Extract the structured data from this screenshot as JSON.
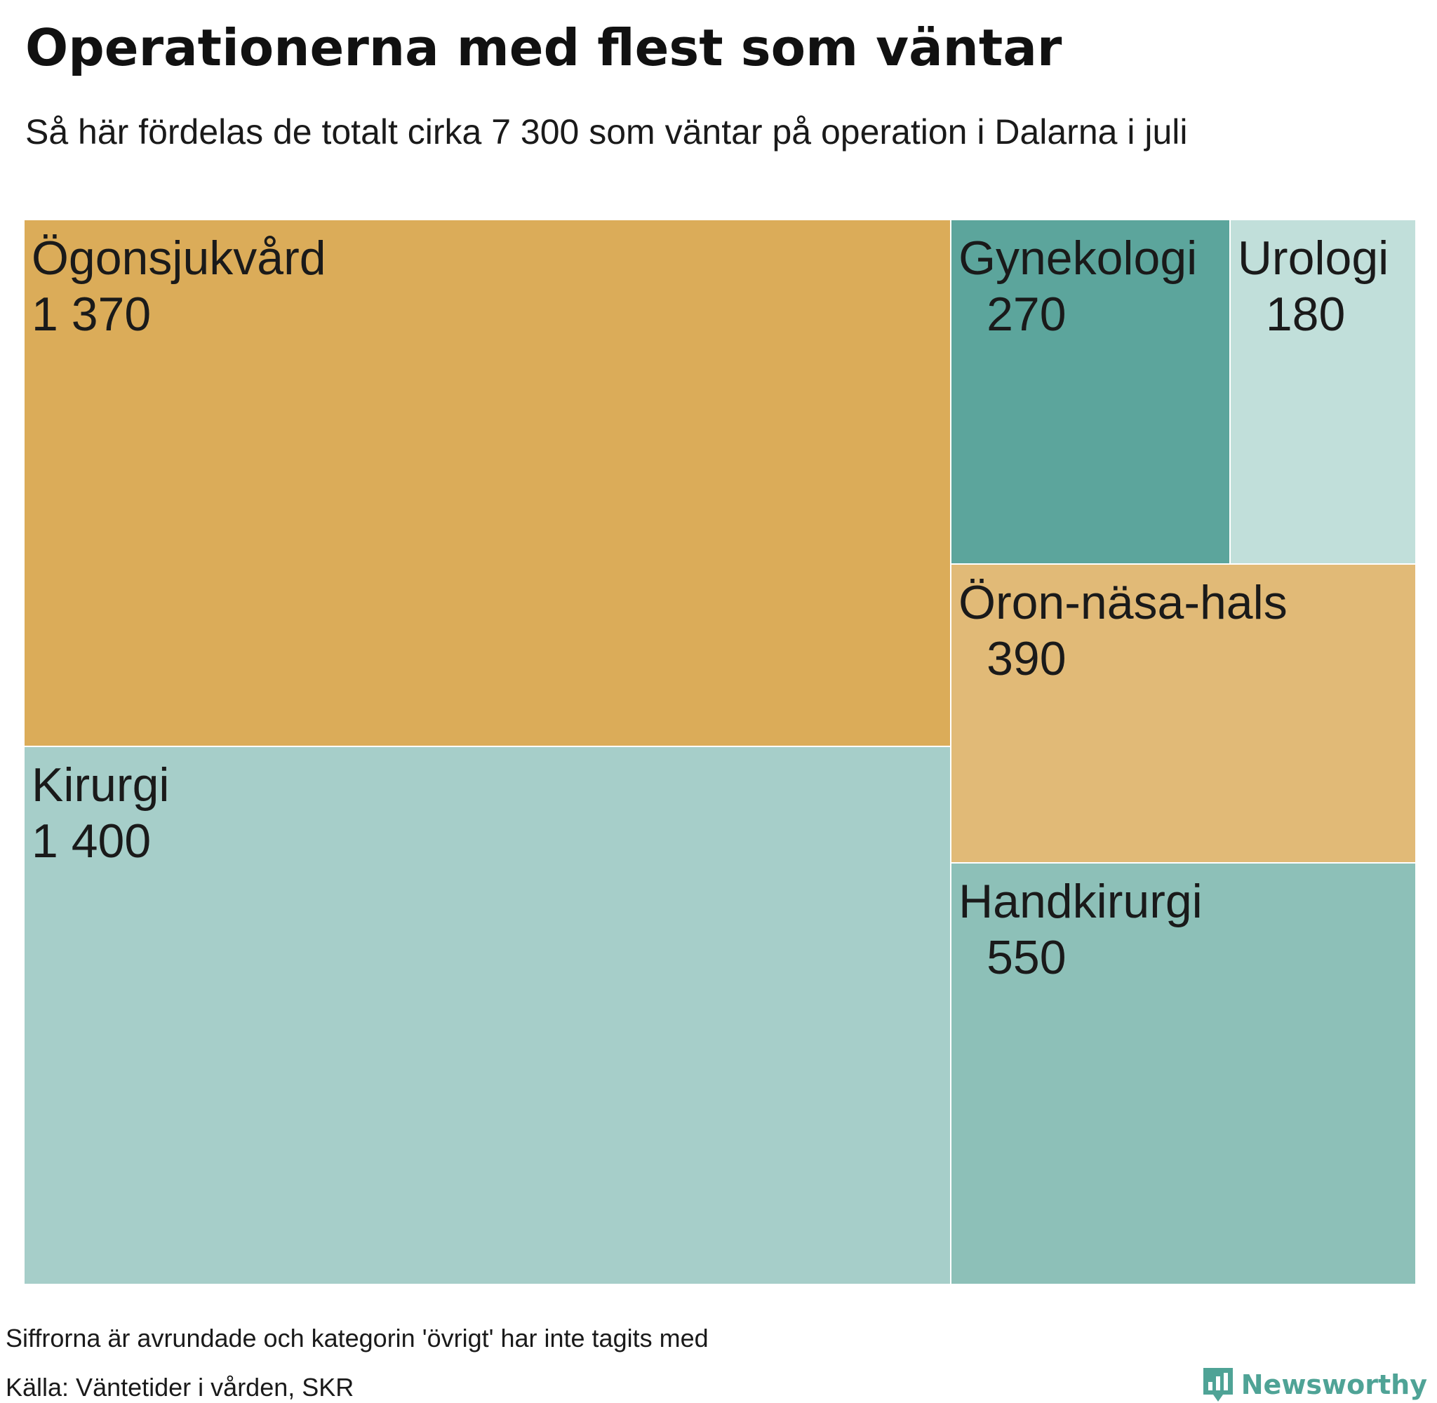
{
  "title": "Operationerna med flest som väntar",
  "subtitle": "Så här fördelas de totalt cirka 7 300 som väntar på operation i Dalarna i juli",
  "note": "Siffrorna är avrundade och kategorin 'övrigt' har inte tagits med",
  "source": "Källa: Väntetider i vården, SKR",
  "brand": {
    "name": "Newsworthy",
    "icon": "bar-chart-speech-bubble-icon",
    "color": "#4fa396"
  },
  "chart_data": {
    "type": "treemap",
    "unit": "patienter",
    "categories": [
      {
        "name": "Ögonsjukvård",
        "label": "1 370",
        "value": 1370,
        "color": "#dbac59"
      },
      {
        "name": "Kirurgi",
        "label": "1 400",
        "value": 1400,
        "color": "#a6cec9"
      },
      {
        "name": "Gynekologi",
        "label": "270",
        "value": 270,
        "color": "#5ca59c"
      },
      {
        "name": "Urologi",
        "label": "180",
        "value": 180,
        "color": "#c1dfda"
      },
      {
        "name": "Öron-näsa-hals",
        "label": "390",
        "value": 390,
        "color": "#e1ba77"
      },
      {
        "name": "Handkirurgi",
        "label": "550",
        "value": 550,
        "color": "#8dc0b8"
      }
    ]
  }
}
